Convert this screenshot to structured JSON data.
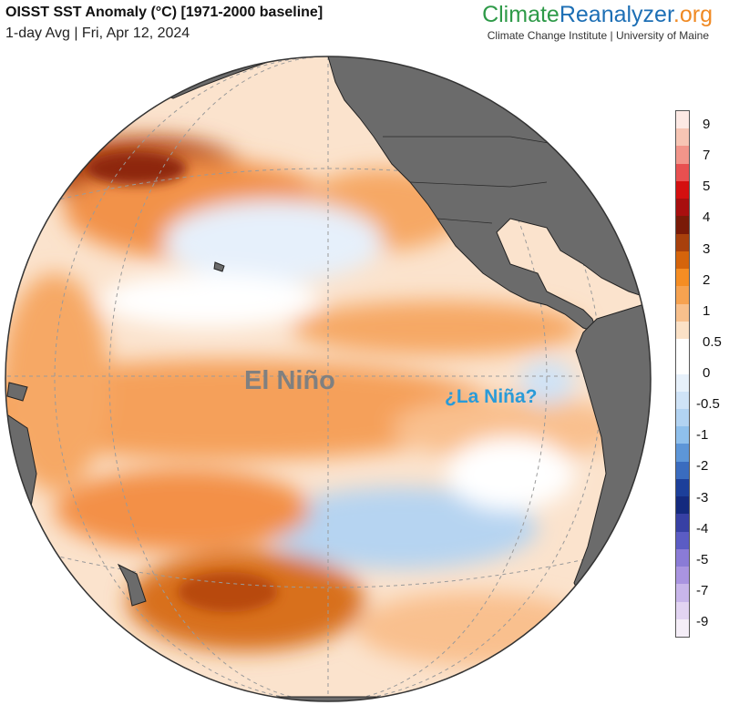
{
  "header": {
    "title": "OISST SST Anomaly (°C) [1971-2000 baseline]",
    "subtitle": "1-day Avg | Fri, Apr 12, 2024"
  },
  "brand": {
    "part1": "Climate",
    "part2": "Reanalyzer",
    "part3": ".org",
    "subtitle": "Climate Change Institute | University of Maine",
    "colors": {
      "climate": "#2e9a48",
      "reanalyzer": "#1d6fb5",
      "org": "#f08a24"
    }
  },
  "map": {
    "annotations": {
      "el_nino": "El Niño",
      "la_nina": "¿La Niña?"
    },
    "colors": {
      "land": "#6b6b6b",
      "ocean_neutral": "#ffffff",
      "gridline": "#9a9a9a"
    }
  },
  "colorbar": {
    "tick_labels": [
      "9",
      "7",
      "5",
      "4",
      "3",
      "2",
      "1",
      "0.5",
      "0",
      "-0.5",
      "-1",
      "-2",
      "-3",
      "-4",
      "-5",
      "-7",
      "-9"
    ],
    "colors": [
      "#fde9e4",
      "#f7c5b4",
      "#f2958a",
      "#e85050",
      "#d41010",
      "#a80f0f",
      "#7a1a08",
      "#a8400c",
      "#d5640b",
      "#f58d23",
      "#f6a250",
      "#f8c08c",
      "#fbe1c6",
      "#ffffff",
      "#ffffff",
      "#e7f1fb",
      "#cfe3f7",
      "#b2d3f2",
      "#8fc0ec",
      "#5d96d8",
      "#3a6cbf",
      "#1c3f9a",
      "#142a7e",
      "#3740a4",
      "#5b5cc4",
      "#8a7bd6",
      "#a994e0",
      "#c8b6ea",
      "#e2d4f2",
      "#f5eef8"
    ]
  }
}
